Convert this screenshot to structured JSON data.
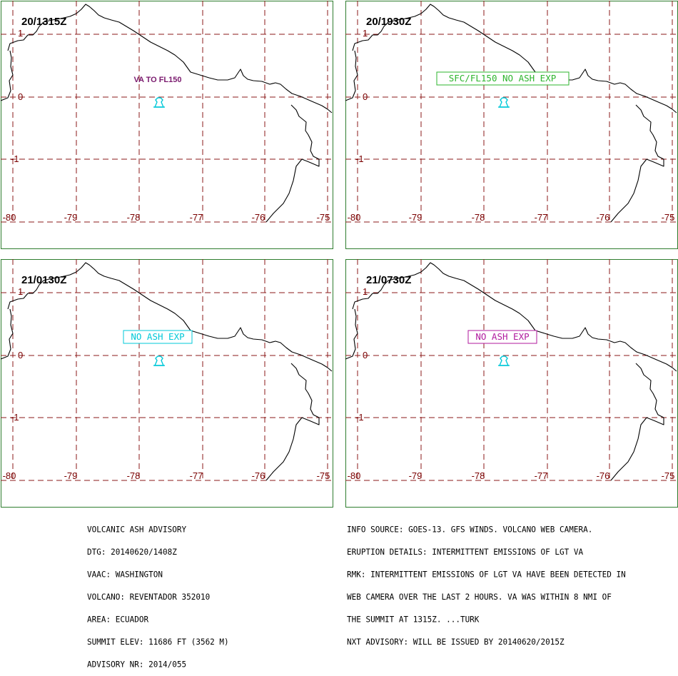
{
  "colors": {
    "frame": "#2e7d2e",
    "grid": "#8b1a1a",
    "tick_labels": "#7a0000",
    "coastline": "#000000",
    "volcano_symbol": "#00c8d8"
  },
  "map_axes": {
    "lon_ticks": [
      "-80",
      "-79",
      "-78",
      "-77",
      "-76",
      "-75"
    ],
    "lat_ticks": [
      "1",
      "0",
      "-1"
    ]
  },
  "volcano_symbol": "volcano-triangle-icon",
  "panels": [
    {
      "id": "p1",
      "title": "20/1315Z",
      "ash_label": "VA TO FL150",
      "ash_style": "plain",
      "ash_color": "#7a1a6e"
    },
    {
      "id": "p2",
      "title": "20/1930Z",
      "ash_label": "SFC/FL150 NO ASH EXP",
      "ash_style": "boxed",
      "ash_color": "#2db52d"
    },
    {
      "id": "p3",
      "title": "21/0130Z",
      "ash_label": "NO ASH EXP",
      "ash_style": "boxed",
      "ash_color": "#00c8d8"
    },
    {
      "id": "p4",
      "title": "21/0730Z",
      "ash_label": "NO ASH EXP",
      "ash_style": "boxed",
      "ash_color": "#b01a9e"
    }
  ],
  "advisory_left": [
    "VOLCANIC ASH ADVISORY",
    "DTG: 20140620/1408Z",
    "VAAC: WASHINGTON",
    "VOLCANO: REVENTADOR 352010",
    "AREA: ECUADOR",
    "SUMMIT ELEV: 11686 FT (3562 M)",
    "ADVISORY NR: 2014/055"
  ],
  "advisory_right": [
    "INFO SOURCE: GOES-13. GFS WINDS. VOLCANO WEB CAMERA.",
    "ERUPTION DETAILS: INTERMITTENT EMISSIONS OF LGT VA",
    "RMK: INTERMITTENT EMISSIONS OF LGT VA HAVE BEEN DETECTED IN",
    "WEB CAMERA OVER THE LAST 2 HOURS. VA WAS WITHIN 8 NMI OF",
    "THE SUMMIT AT 1315Z. ...TURK",
    "NXT ADVISORY: WILL BE ISSUED BY 20140620/2015Z"
  ]
}
